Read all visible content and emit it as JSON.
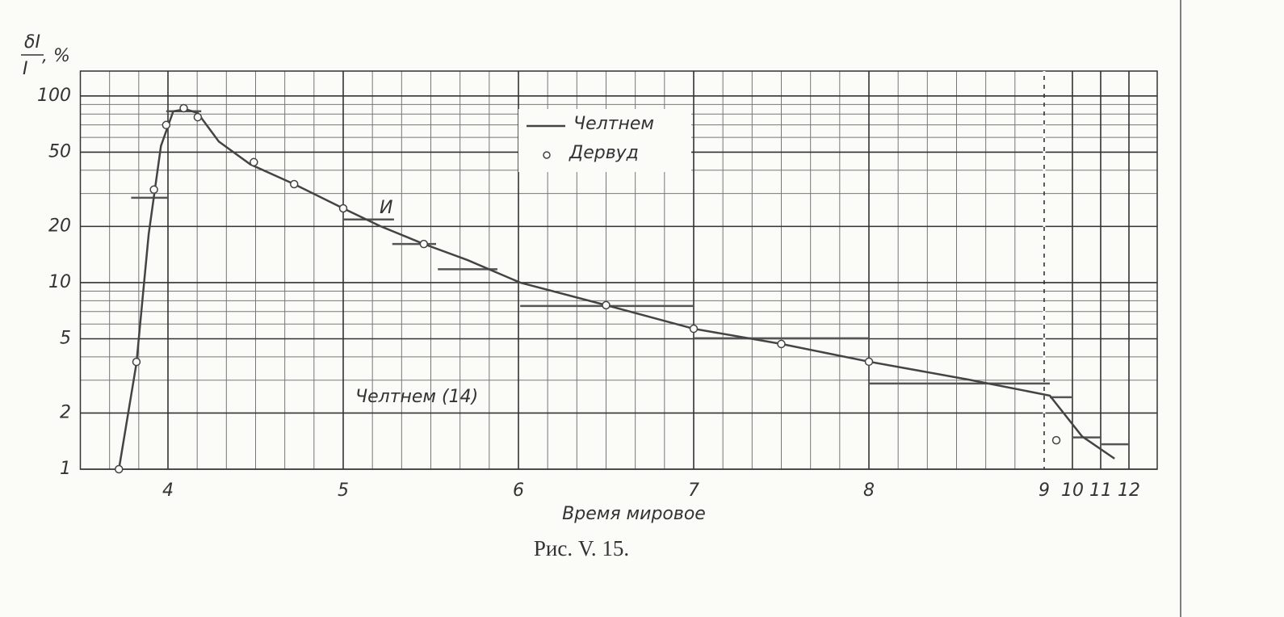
{
  "chart_data": {
    "type": "line",
    "ylabel_num": "δI",
    "ylabel_den": "I",
    "ylabel_unit": ", %",
    "xlabel": "Время мировое",
    "caption": "Рис. V. 15.",
    "annotations": [
      "И",
      "Челтнем (14)"
    ],
    "xlim": [
      3.5,
      13
    ],
    "xticks": [
      4,
      5,
      6,
      7,
      8,
      9,
      10,
      11,
      12
    ],
    "ylim": [
      1,
      136
    ],
    "yticks": [
      1,
      2,
      5,
      10,
      20,
      50,
      100
    ],
    "log_y": true,
    "grid": true,
    "dashed_x": 9,
    "series": [
      {
        "name": "Челтнем",
        "color": "#444444",
        "x": [
          3.72,
          3.82,
          3.89,
          3.96,
          4.03,
          4.1,
          4.17,
          4.29,
          4.47,
          4.72,
          5.0,
          5.21,
          5.46,
          5.71,
          6.01,
          6.5,
          7.0,
          7.5,
          8.0,
          8.57,
          9.2,
          10.34,
          11.49
        ],
        "values": [
          1,
          3.69,
          18.2,
          54,
          82.8,
          85,
          81,
          57,
          43,
          33.7,
          25,
          20.1,
          16.1,
          13.2,
          10,
          7.57,
          5.66,
          4.69,
          3.77,
          3.02,
          2.48,
          1.5,
          1.14
        ]
      },
      {
        "name": "Дервуд",
        "color": "#444444",
        "marker": "circle",
        "x": [
          3.72,
          3.82,
          3.92,
          3.99,
          4.09,
          4.17,
          4.49,
          4.72,
          5.0,
          5.46,
          6.5,
          7.0,
          7.5,
          8.0,
          9.43
        ],
        "values": [
          1,
          3.76,
          31.5,
          69.9,
          86,
          77,
          44.2,
          33.7,
          25,
          16.1,
          7.57,
          5.66,
          4.69,
          3.77,
          1.43
        ]
      }
    ],
    "bars": {
      "name": "Челтнем (14)",
      "color": "#555555",
      "x0": [
        3.79,
        3.99,
        5.0,
        5.28,
        5.54,
        6.01,
        7.0,
        8.0,
        9.2,
        10.0,
        11.03
      ],
      "x1": [
        4.0,
        4.19,
        5.29,
        5.53,
        5.88,
        7.0,
        8.0,
        9.2,
        10.0,
        11.03,
        12.0
      ],
      "values": [
        28.5,
        82.8,
        21.8,
        16.1,
        11.8,
        7.49,
        5.03,
        2.88,
        2.43,
        1.48,
        1.36
      ]
    }
  }
}
